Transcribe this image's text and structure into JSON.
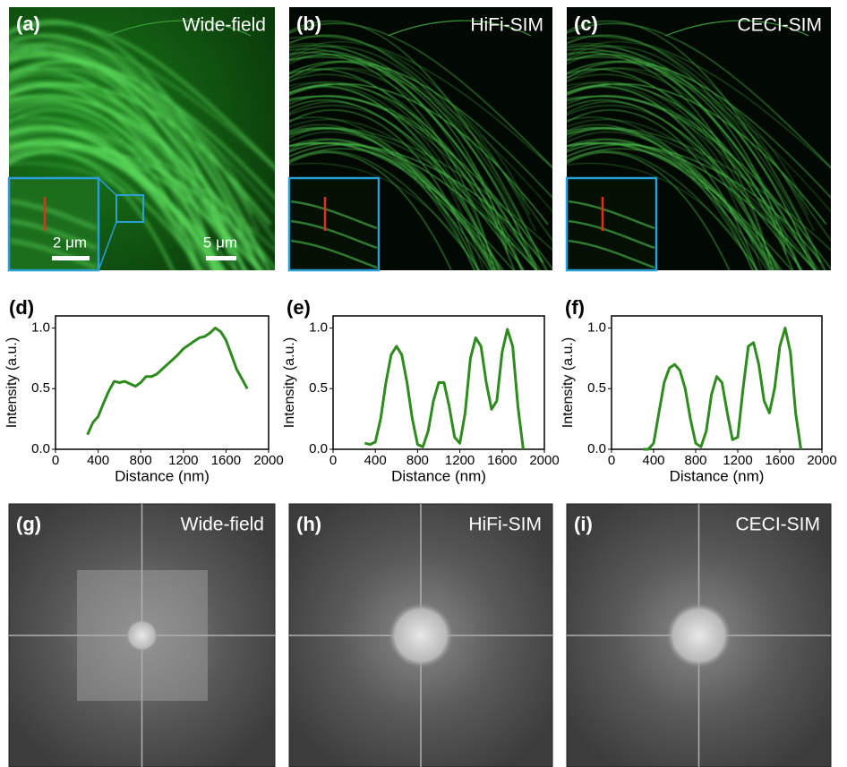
{
  "panels": [
    {
      "label": "(a)",
      "title": "Wide-field"
    },
    {
      "label": "(b)",
      "title": "HiFi-SIM"
    },
    {
      "label": "(c)",
      "title": "CECI-SIM"
    },
    {
      "label": "(g)",
      "title": "Wide-field"
    },
    {
      "label": "(h)",
      "title": "HiFi-SIM"
    },
    {
      "label": "(i)",
      "title": "CECI-SIM"
    }
  ],
  "scale_bars": [
    "2 μm",
    "5 μm"
  ],
  "chart_data": [
    {
      "type": "line",
      "label": "(d)",
      "xlabel": "Distance (nm)",
      "ylabel": "Intensity (a.u.)",
      "xlim": [
        0,
        2000
      ],
      "ylim": [
        0,
        1.1
      ],
      "xticks": [
        0,
        400,
        800,
        1200,
        1600,
        2000
      ],
      "yticks": [
        {
          "value": 0,
          "label": "0.0"
        },
        0.5,
        {
          "value": 1,
          "label": "1.0"
        }
      ],
      "x": [
        300,
        350,
        400,
        450,
        500,
        550,
        600,
        650,
        700,
        750,
        800,
        850,
        900,
        950,
        1000,
        1050,
        1100,
        1150,
        1200,
        1250,
        1300,
        1350,
        1400,
        1450,
        1500,
        1550,
        1600,
        1650,
        1700,
        1750,
        1800
      ],
      "series": [
        {
          "color": "#2e8b1e",
          "values": [
            0.12,
            0.22,
            0.27,
            0.38,
            0.48,
            0.56,
            0.55,
            0.56,
            0.54,
            0.52,
            0.55,
            0.6,
            0.6,
            0.62,
            0.66,
            0.7,
            0.74,
            0.78,
            0.83,
            0.86,
            0.89,
            0.92,
            0.93,
            0.96,
            1.0,
            0.97,
            0.9,
            0.78,
            0.66,
            0.58,
            0.5
          ]
        }
      ]
    },
    {
      "type": "line",
      "label": "(e)",
      "xlabel": "Distance (nm)",
      "ylabel": "Intensity (a.u.)",
      "xlim": [
        0,
        2000
      ],
      "ylim": [
        0,
        1.1
      ],
      "xticks": [
        0,
        400,
        800,
        1200,
        1600,
        2000
      ],
      "yticks": [
        {
          "value": 0,
          "label": "0.0"
        },
        0.5,
        {
          "value": 1,
          "label": "1.0"
        }
      ],
      "x": [
        300,
        350,
        400,
        450,
        500,
        550,
        600,
        650,
        700,
        750,
        800,
        850,
        900,
        950,
        1000,
        1050,
        1100,
        1150,
        1200,
        1250,
        1300,
        1350,
        1400,
        1450,
        1500,
        1550,
        1600,
        1650,
        1700,
        1750,
        1800
      ],
      "series": [
        {
          "color": "#2e8b1e",
          "values": [
            0.05,
            0.04,
            0.06,
            0.25,
            0.55,
            0.78,
            0.85,
            0.78,
            0.55,
            0.25,
            0.04,
            0.02,
            0.15,
            0.4,
            0.55,
            0.55,
            0.35,
            0.1,
            0.05,
            0.3,
            0.75,
            0.92,
            0.85,
            0.55,
            0.33,
            0.4,
            0.8,
            0.99,
            0.85,
            0.35,
            0.0
          ]
        }
      ]
    },
    {
      "type": "line",
      "label": "(f)",
      "xlabel": "Distance (nm)",
      "ylabel": "Intensity (a.u.)",
      "xlim": [
        0,
        2000
      ],
      "ylim": [
        0,
        1.1
      ],
      "xticks": [
        0,
        400,
        800,
        1200,
        1600,
        2000
      ],
      "yticks": [
        {
          "value": 0,
          "label": "0.0"
        },
        0.5,
        {
          "value": 1,
          "label": "1.0"
        }
      ],
      "x": [
        300,
        350,
        400,
        450,
        500,
        550,
        600,
        650,
        700,
        750,
        800,
        850,
        900,
        950,
        1000,
        1050,
        1100,
        1150,
        1200,
        1250,
        1300,
        1350,
        1400,
        1450,
        1500,
        1550,
        1600,
        1650,
        1700,
        1750,
        1800
      ],
      "series": [
        {
          "color": "#2e8b1e",
          "values": [
            0.0,
            0.0,
            0.05,
            0.3,
            0.55,
            0.67,
            0.7,
            0.65,
            0.5,
            0.25,
            0.05,
            0.02,
            0.15,
            0.45,
            0.6,
            0.55,
            0.3,
            0.08,
            0.1,
            0.5,
            0.85,
            0.88,
            0.7,
            0.4,
            0.3,
            0.5,
            0.85,
            1.0,
            0.8,
            0.3,
            0.0
          ]
        }
      ]
    }
  ]
}
